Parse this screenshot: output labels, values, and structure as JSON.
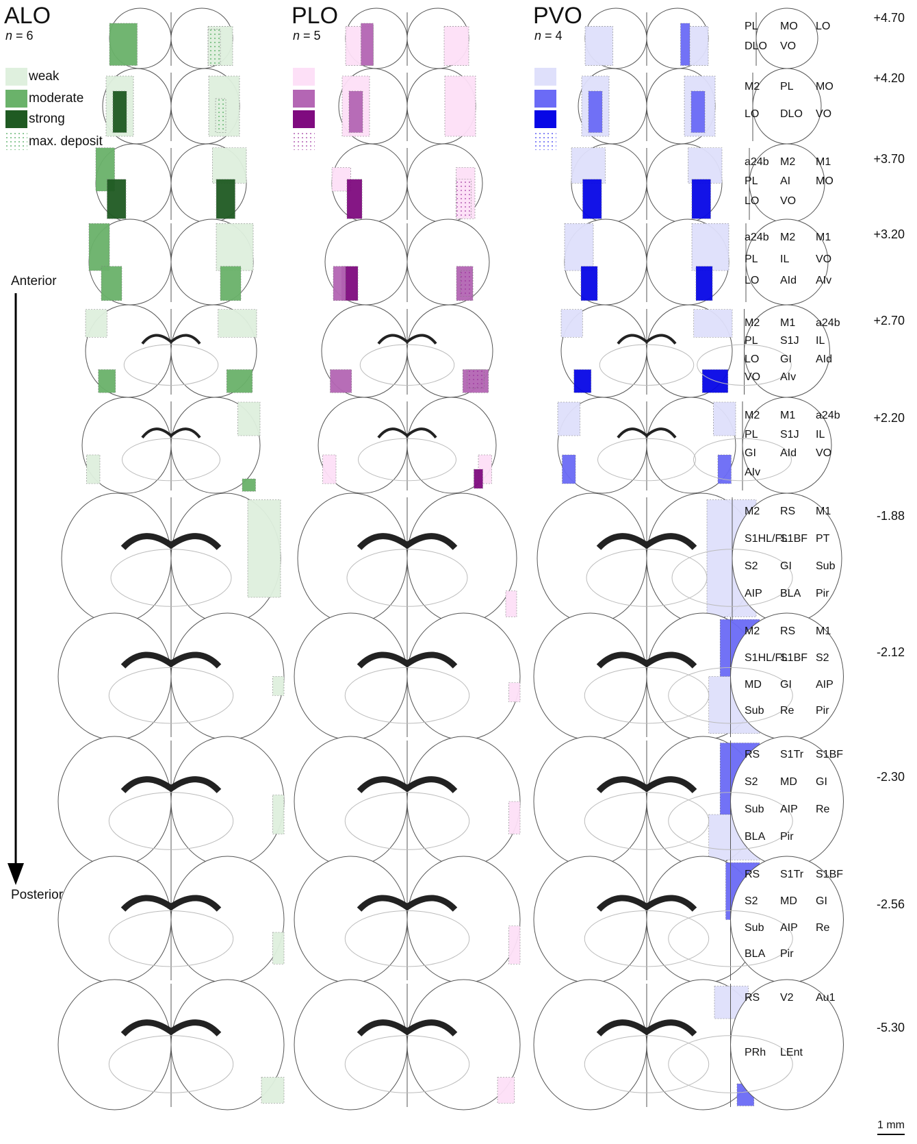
{
  "columns": [
    {
      "id": "alo",
      "title": "ALO",
      "n": "6",
      "x": 0
    },
    {
      "id": "plo",
      "title": "PLO",
      "n": "5",
      "x": 422
    },
    {
      "id": "pvo",
      "title": "PVO",
      "n": "4",
      "x": 775
    }
  ],
  "n_prefix": "n",
  "legend": {
    "weak": "weak",
    "moderate": "moderate",
    "strong": "strong",
    "max_deposit": "max. deposit"
  },
  "colors": {
    "alo": {
      "weak": "#dff0de",
      "moderate": "#6ab26a",
      "strong": "#1f5a22",
      "dots": "#3aa14a"
    },
    "plo": {
      "weak": "#fde0f7",
      "moderate": "#b466b4",
      "strong": "#7f0b7f",
      "dots": "#9b2d9b"
    },
    "pvo": {
      "weak": "#dfe0fb",
      "moderate": "#6b6bf6",
      "strong": "#0707e6",
      "dots": "#2b2bf0"
    }
  },
  "axis": {
    "anterior": "Anterior",
    "posterior": "Posterior"
  },
  "scale_bar": "1 mm",
  "sections": [
    {
      "coord": "+4.70",
      "labels": [
        "PL",
        "MO",
        "LO",
        "DLO",
        "VO"
      ]
    },
    {
      "coord": "+4.20",
      "labels": [
        "M2",
        "PL",
        "MO",
        "LO",
        "DLO",
        "VO"
      ]
    },
    {
      "coord": "+3.70",
      "labels": [
        "a24b",
        "M2",
        "M1",
        "PL",
        "AI",
        "MO",
        "LO",
        "VO"
      ]
    },
    {
      "coord": "+3.20",
      "labels": [
        "a24b",
        "M2",
        "M1",
        "PL",
        "IL",
        "VO",
        "LO",
        "AId",
        "AIv"
      ]
    },
    {
      "coord": "+2.70",
      "labels": [
        "M2",
        "M1",
        "a24b",
        "PL",
        "S1J",
        "IL",
        "LO",
        "GI",
        "AId",
        "VO",
        "AIv"
      ]
    },
    {
      "coord": "+2.20",
      "labels": [
        "M2",
        "M1",
        "a24b",
        "PL",
        "S1J",
        "IL",
        "GI",
        "AId",
        "VO",
        "AIv"
      ]
    },
    {
      "coord": "-1.88",
      "labels": [
        "M2",
        "RS",
        "M1",
        "S1HL/FL",
        "S1BF",
        "PT",
        "S2",
        "GI",
        "Sub",
        "AIP",
        "BLA",
        "Pir"
      ]
    },
    {
      "coord": "-2.12",
      "labels": [
        "M2",
        "RS",
        "M1",
        "S1HL/FL",
        "S1BF",
        "S2",
        "MD",
        "GI",
        "AIP",
        "Sub",
        "Re",
        "Pir"
      ]
    },
    {
      "coord": "-2.30",
      "labels": [
        "RS",
        "S1Tr",
        "S1BF",
        "S2",
        "MD",
        "GI",
        "Sub",
        "AIP",
        "Re",
        "BLA",
        "Pir"
      ]
    },
    {
      "coord": "-2.56",
      "labels": [
        "RS",
        "S1Tr",
        "S1BF",
        "S2",
        "MD",
        "GI",
        "Sub",
        "AIP",
        "Re",
        "BLA",
        "Pir"
      ]
    },
    {
      "coord": "-5.30",
      "labels": [
        "RS",
        "V2",
        "Au1",
        "PRh",
        "LEnt"
      ]
    }
  ]
}
